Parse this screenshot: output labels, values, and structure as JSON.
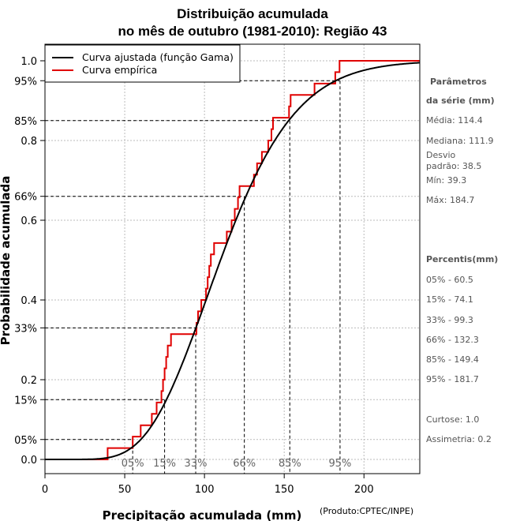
{
  "chart_data": {
    "type": "line",
    "title_line1": "Distribuição acumulada",
    "title_line2": "no mês de outubro (1981-2010): Região 43",
    "xlabel": "Precipitação acumulada (mm)",
    "ylabel": "Probabilidade acumulada",
    "xlim": [
      0,
      235
    ],
    "ylim": [
      -0.02,
      1.03
    ],
    "x_ticks": [
      0,
      50,
      100,
      150,
      200
    ],
    "y_ticks": [
      {
        "v": 0.0,
        "label": "0.0"
      },
      {
        "v": 0.2,
        "label": "0.2"
      },
      {
        "v": 0.4,
        "label": "0.4"
      },
      {
        "v": 0.6,
        "label": "0.6"
      },
      {
        "v": 0.8,
        "label": "0.8"
      },
      {
        "v": 1.0,
        "label": "1.0"
      }
    ],
    "y_percent_ticks": [
      {
        "v": 0.05,
        "label": "05%"
      },
      {
        "v": 0.15,
        "label": "15%"
      },
      {
        "v": 0.33,
        "label": "33%"
      },
      {
        "v": 0.66,
        "label": "66%"
      },
      {
        "v": 0.85,
        "label": "85%"
      },
      {
        "v": 0.95,
        "label": "95%"
      }
    ],
    "grid": true,
    "legend": {
      "position": "top-left",
      "fitted_label": "Curva ajustada (função Gama)",
      "empirical_label": "Curva empírica"
    },
    "gamma": {
      "shape": 9.2,
      "scale": 12.41
    },
    "empirical": {
      "x": [
        39.3,
        55,
        60,
        67,
        70,
        73,
        74,
        75,
        76,
        77,
        79,
        95,
        96,
        98,
        101,
        102,
        103,
        104,
        106,
        114,
        117,
        119,
        121,
        122,
        131,
        133,
        136,
        140,
        142,
        143,
        153,
        154,
        169,
        182,
        184.7
      ],
      "y_start": 0.0,
      "y_end": 1.0,
      "first_x": 0,
      "last_x": 235
    },
    "percentiles": [
      {
        "label": "05%",
        "x": 55.0,
        "y": 0.05
      },
      {
        "label": "15%",
        "x": 75.0,
        "y": 0.15
      },
      {
        "label": "33%",
        "x": 94.5,
        "y": 0.33
      },
      {
        "label": "66%",
        "x": 125.0,
        "y": 0.66
      },
      {
        "label": "85%",
        "x": 153.5,
        "y": 0.85
      },
      {
        "label": "95%",
        "x": 185.0,
        "y": 0.95
      }
    ]
  },
  "side_panel": {
    "params_title_1": "Parâmetros",
    "params_title_2": "da série (mm)",
    "media": "Média: 114.4",
    "mediana": "Mediana: 111.9",
    "desvio_1": "Desvio",
    "desvio_2": "padrão: 38.5",
    "min": "Mín: 39.3",
    "max": "Máx: 184.7",
    "percentis_title": "Percentis(mm)",
    "p05": "05% - 60.5",
    "p15": "15% - 74.1",
    "p33": "33% - 99.3",
    "p66": "66% - 132.3",
    "p85": "85% - 149.4",
    "p95": "95% - 181.7",
    "curtose": "Curtose: 1.0",
    "assimetria": "Assimetria: 0.2"
  },
  "credit": "(Produto:CPTEC/INPE)",
  "colors": {
    "fitted": "#000000",
    "empirical": "#e00000",
    "grid": "#bbbbbb",
    "side_text": "#555555"
  }
}
